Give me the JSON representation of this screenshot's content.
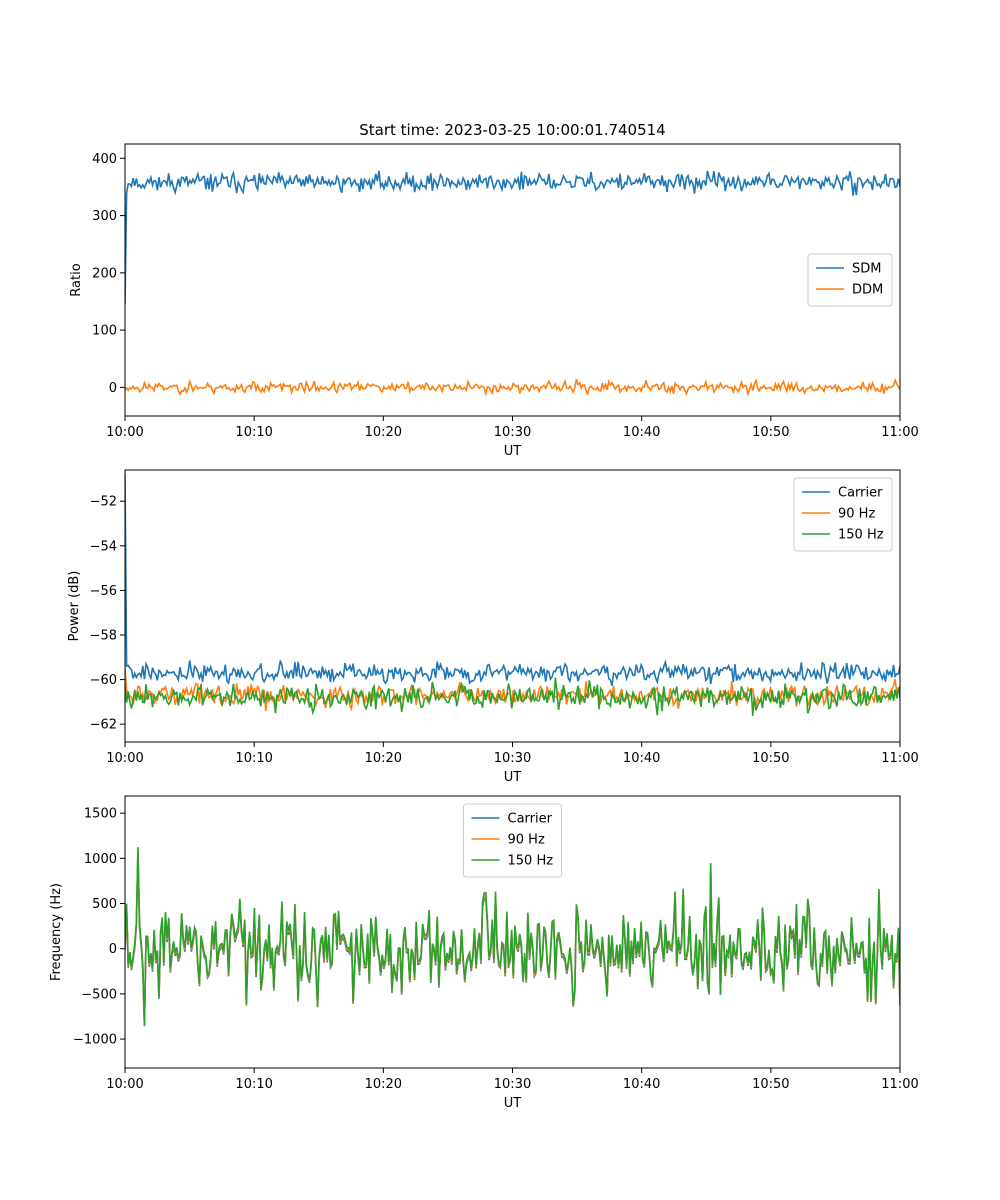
{
  "title": "Start time: 2023-03-25 10:00:01.740514",
  "chart_data": [
    {
      "type": "line",
      "xlabel": "UT",
      "ylabel": "Ratio",
      "xlim": [
        "10:00",
        "11:00"
      ],
      "xtick_labels": [
        "10:00",
        "10:10",
        "10:20",
        "10:30",
        "10:40",
        "10:50",
        "11:00"
      ],
      "ylim": [
        -50,
        425
      ],
      "yticks": [
        0,
        100,
        200,
        300,
        400
      ],
      "ytick_labels": [
        "0",
        "100",
        "200",
        "300",
        "400"
      ],
      "legend_position": "center-right",
      "grid": false,
      "series": [
        {
          "name": "SDM",
          "color": "#1f77b4",
          "start": 145,
          "level": 358,
          "noise": 13,
          "points": 480,
          "seed": 11
        },
        {
          "name": "DDM",
          "color": "#ff7f0e",
          "start": -5,
          "level": 0,
          "noise": 8,
          "points": 480,
          "seed": 23
        }
      ]
    },
    {
      "type": "line",
      "xlabel": "UT",
      "ylabel": "Power (dB)",
      "xlim": [
        "10:00",
        "11:00"
      ],
      "xtick_labels": [
        "10:00",
        "10:10",
        "10:20",
        "10:30",
        "10:40",
        "10:50",
        "11:00"
      ],
      "ylim": [
        -62.8,
        -50.6
      ],
      "yticks": [
        -62,
        -60,
        -58,
        -56,
        -54,
        -52
      ],
      "ytick_labels": [
        "−62",
        "−60",
        "−58",
        "−56",
        "−54",
        "−52"
      ],
      "legend_position": "top-right",
      "grid": false,
      "series": [
        {
          "name": "Carrier",
          "color": "#1f77b4",
          "start": -50.8,
          "level": -59.7,
          "noise": 0.35,
          "points": 480,
          "seed": 5
        },
        {
          "name": "90 Hz",
          "color": "#ff7f0e",
          "start": -59.5,
          "level": -60.7,
          "noise": 0.4,
          "points": 480,
          "seed": 17
        },
        {
          "name": "150 Hz",
          "color": "#2ca02c",
          "start": -60.3,
          "level": -60.8,
          "noise": 0.45,
          "points": 480,
          "seed": 31
        }
      ]
    },
    {
      "type": "line",
      "xlabel": "UT",
      "ylabel": "Frequency (Hz)",
      "xlim": [
        "10:00",
        "11:00"
      ],
      "xtick_labels": [
        "10:00",
        "10:10",
        "10:20",
        "10:30",
        "10:40",
        "10:50",
        "11:00"
      ],
      "ylim": [
        -1320,
        1690
      ],
      "yticks": [
        -1000,
        -500,
        0,
        500,
        1000,
        1500
      ],
      "ytick_labels": [
        "−1000",
        "−500",
        "0",
        "500",
        "1000",
        "1500"
      ],
      "legend_position": "top-center",
      "grid": false,
      "series": [
        {
          "name": "Carrier",
          "color": "#1f77b4",
          "offset": -40,
          "level": 0,
          "noise": 380,
          "points": 480,
          "seed": 47
        },
        {
          "name": "90 Hz",
          "color": "#ff7f0e",
          "offset": -20,
          "level": 0,
          "noise": 380,
          "points": 480,
          "seed": 47
        },
        {
          "name": "150 Hz",
          "color": "#2ca02c",
          "offset": 0,
          "level": 0,
          "noise": 380,
          "points": 480,
          "seed": 47
        }
      ]
    }
  ]
}
